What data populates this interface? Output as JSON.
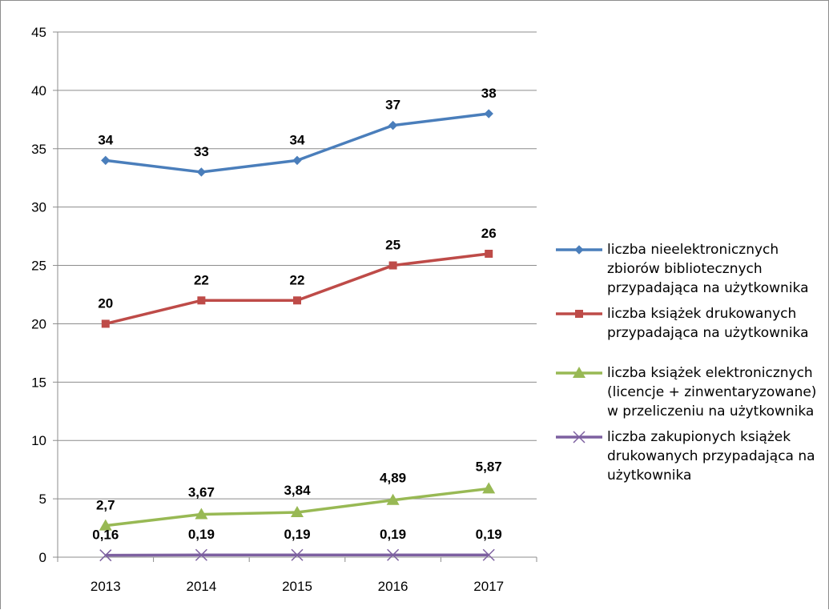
{
  "chart_data": {
    "type": "line",
    "categories": [
      "2013",
      "2014",
      "2015",
      "2016",
      "2017"
    ],
    "ylim": [
      0,
      45
    ],
    "yticks": [
      "0",
      "5",
      "10",
      "15",
      "20",
      "25",
      "30",
      "35",
      "40",
      "45"
    ],
    "grid": true,
    "legend_position": "right",
    "series": [
      {
        "name": "liczba nieelektronicznych zbiorów bibliotecznych przypadająca na użytkownika",
        "name_lines": [
          "liczba nieelektronicznych",
          "zbiorów bibliotecznych",
          "przypadająca na użytkownika"
        ],
        "color": "#4a7ebb",
        "marker": "diamond",
        "values": [
          34,
          33,
          34,
          37,
          38
        ],
        "labels": [
          "34",
          "33",
          "34",
          "37",
          "38"
        ]
      },
      {
        "name": "liczba książek drukowanych przypadająca na użytkownika",
        "name_lines": [
          "liczba książek drukowanych",
          "przypadająca na użytkownika"
        ],
        "color": "#be4b48",
        "marker": "square",
        "values": [
          20,
          22,
          22,
          25,
          26
        ],
        "labels": [
          "20",
          "22",
          "22",
          "25",
          "26"
        ]
      },
      {
        "name": "liczba książek elektronicznych (licencje + zinwentaryzowane) w przeliczeniu na użytkownika",
        "name_lines": [
          "liczba książek elektronicznych",
          "(licencje + zinwentaryzowane)",
          "w przeliczeniu na użytkownika"
        ],
        "color": "#98b954",
        "marker": "triangle",
        "values": [
          2.7,
          3.67,
          3.84,
          4.89,
          5.87
        ],
        "labels": [
          "2,7",
          "3,67",
          "3,84",
          "4,89",
          "5,87"
        ]
      },
      {
        "name": "liczba zakupionych książek drukowanych przypadająca na użytkownika",
        "name_lines": [
          "liczba zakupionych książek",
          "drukowanych przypadająca na",
          "użytkownika"
        ],
        "color": "#7d60a0",
        "marker": "x",
        "values": [
          0.16,
          0.19,
          0.19,
          0.19,
          0.19
        ],
        "labels": [
          "0,16",
          "0,19",
          "0,19",
          "0,19",
          "0,19"
        ]
      }
    ]
  }
}
